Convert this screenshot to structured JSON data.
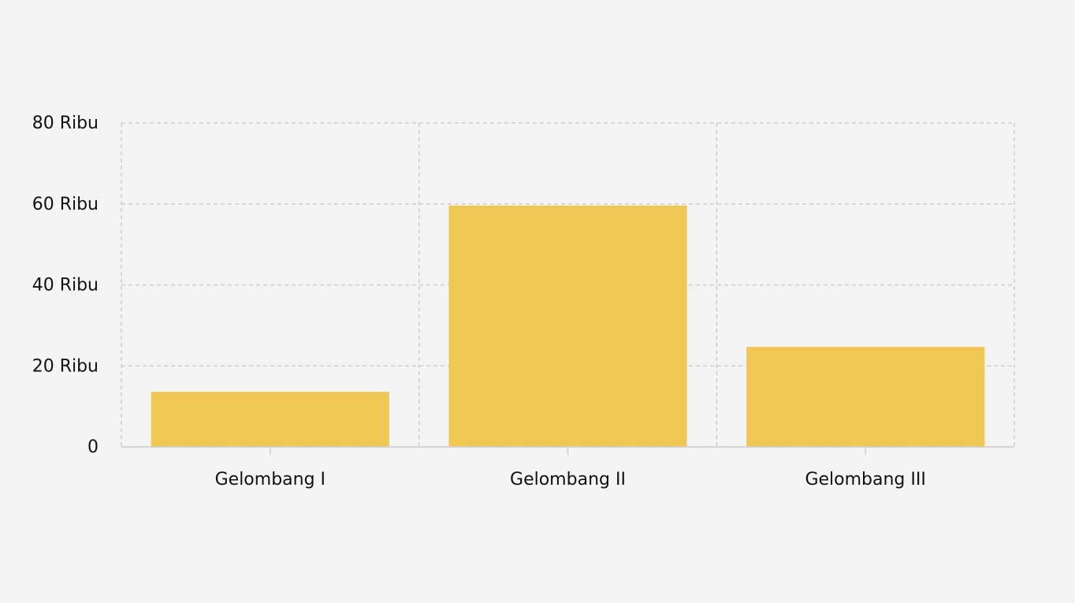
{
  "chart_data": {
    "type": "bar",
    "categories": [
      "Gelombang I",
      "Gelombang II",
      "Gelombang III"
    ],
    "values": [
      13600,
      59600,
      24700
    ],
    "color": "#f0c752",
    "ylim": [
      0,
      80000
    ],
    "yticks": [
      0,
      {
        "value": 20000,
        "label": "20 Ribu"
      },
      {
        "value": 40000,
        "label": "40 Ribu"
      },
      {
        "value": 60000,
        "label": "60 Ribu"
      },
      {
        "value": 80000,
        "label": "80 Ribu"
      }
    ],
    "grid": true
  }
}
